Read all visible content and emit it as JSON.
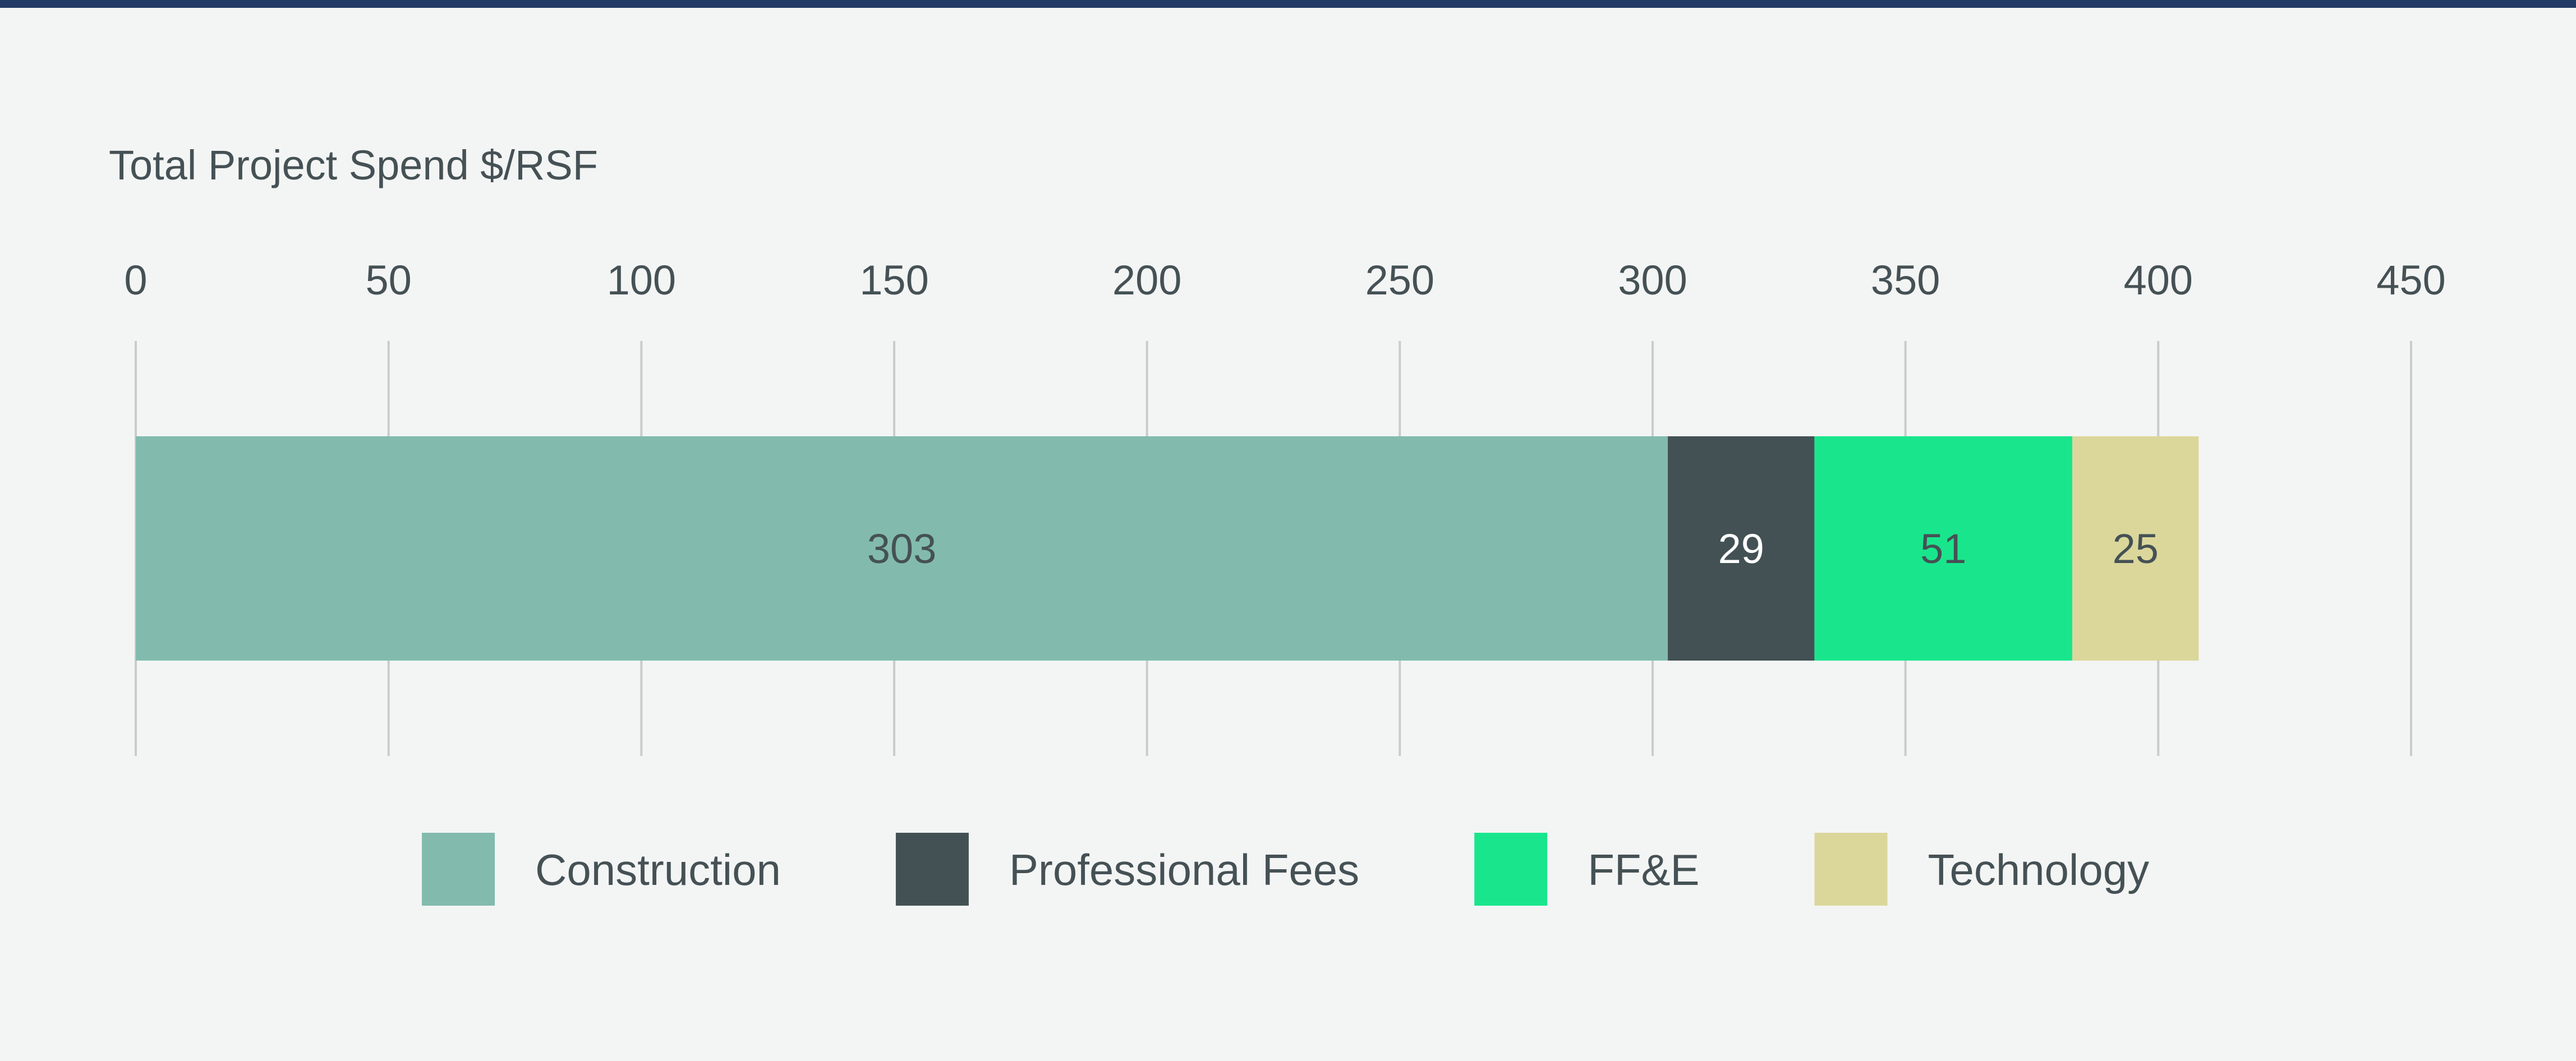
{
  "chart_data": {
    "type": "bar",
    "orientation": "horizontal",
    "stacked": true,
    "title": "Total Project Spend $/RSF",
    "xlim": [
      0,
      450
    ],
    "x_ticks": [
      "0",
      "50",
      "100",
      "150",
      "200",
      "250",
      "300",
      "350",
      "400",
      "450"
    ],
    "grid": true,
    "legend_position": "bottom",
    "series": [
      {
        "name": "Construction",
        "value": 303,
        "color": "#82bbad",
        "label_color": "#455155"
      },
      {
        "name": "Professional Fees",
        "value": 29,
        "color": "#435154",
        "label_color": "#ffffff"
      },
      {
        "name": "FF&E",
        "value": 51,
        "color": "#19e68c",
        "label_color": "#455155"
      },
      {
        "name": "Technology",
        "value": 25,
        "color": "#dbd79b",
        "label_color": "#455155"
      }
    ]
  },
  "colors": {
    "background": "#f3f5f4",
    "accent_rule": "#223a66",
    "grid": "#c9cccc",
    "text": "#455155"
  }
}
